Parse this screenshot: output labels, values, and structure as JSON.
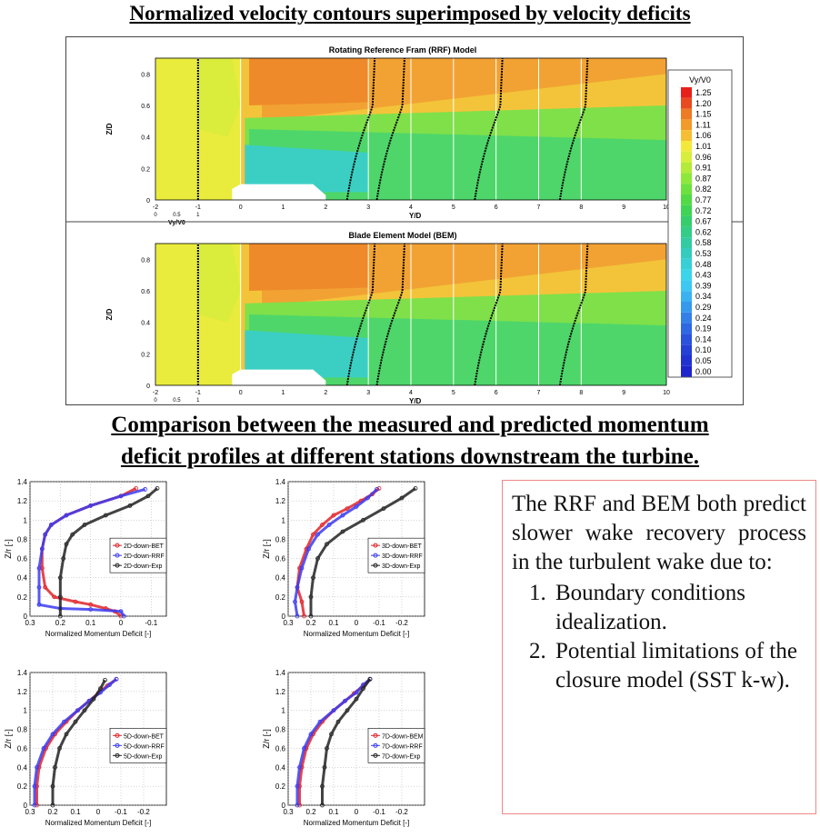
{
  "header": {
    "title": "Normalized velocity contours superimposed by velocity deficits",
    "subtitle_line1": "Comparison between the measured and predicted momentum",
    "subtitle_line2": "deficit profiles at different stations downstream the turbine."
  },
  "contour_figure": {
    "panels": [
      {
        "title": "Rotating Reference Fram (RRF) Model",
        "ylabel": "Z/D",
        "xlabel": "Y/D",
        "sub_xlabel": "Vy/V0"
      },
      {
        "title": "Blade Element Model (BEM)",
        "ylabel": "Z/D",
        "xlabel": "Y/D",
        "sub_xlabel": "Vy/V0"
      }
    ],
    "yticks": [
      "0",
      "0.2",
      "0.4",
      "0.6",
      "0.8"
    ],
    "xticks": [
      "-2",
      "-1",
      "0",
      "1",
      "2",
      "3",
      "4",
      "5",
      "6",
      "7",
      "8",
      "9",
      "10"
    ],
    "sub_ticks": [
      "0",
      "0.5",
      "1"
    ],
    "colorbar": {
      "title": "Vy/V0",
      "levels": [
        "1.25",
        "1.20",
        "1.15",
        "1.11",
        "1.06",
        "1.01",
        "0.96",
        "0.91",
        "0.87",
        "0.82",
        "0.77",
        "0.72",
        "0.67",
        "0.62",
        "0.58",
        "0.53",
        "0.48",
        "0.43",
        "0.39",
        "0.34",
        "0.29",
        "0.24",
        "0.19",
        "0.14",
        "0.10",
        "0.05",
        "0.00"
      ],
      "colors": [
        "#e8201a",
        "#ea4a1f",
        "#ee7a24",
        "#f29a2a",
        "#f6bf33",
        "#f3e93a",
        "#d8ee3c",
        "#b4ea3a",
        "#8ee83c",
        "#6de23e",
        "#51da46",
        "#3fd455",
        "#36ce6c",
        "#34cc86",
        "#33cba2",
        "#34ccbe",
        "#36d0d6",
        "#3bd5ea",
        "#3cc8f2",
        "#3ab2f2",
        "#3799ee",
        "#3480e8",
        "#2f68e2",
        "#2a52dc",
        "#2540d6",
        "#2232d2",
        "#1e24cc"
      ]
    }
  },
  "chart_data": [
    {
      "type": "scatter",
      "title": "",
      "xlabel": "Normalized Momentum Deficit [-]",
      "ylabel": "Z/r [-]",
      "xlim": [
        0.3,
        -0.15
      ],
      "ylim": [
        0,
        1.4
      ],
      "xticks": [
        "0.3",
        "0.2",
        "0.1",
        "0",
        "-0.1"
      ],
      "yticks": [
        "0",
        "0.2",
        "0.4",
        "0.6",
        "0.8",
        "1",
        "1.2",
        "1.4"
      ],
      "series": [
        {
          "name": "2D-down-BET",
          "color": "#e0242a",
          "x": [
            0.0,
            0.02,
            0.05,
            0.1,
            0.15,
            0.22,
            0.25,
            0.26,
            0.26,
            0.25,
            0.23,
            0.18,
            0.1,
            0.0,
            -0.05
          ],
          "y": [
            0.0,
            0.05,
            0.08,
            0.12,
            0.15,
            0.2,
            0.3,
            0.5,
            0.7,
            0.85,
            0.95,
            1.05,
            1.15,
            1.25,
            1.33
          ]
        },
        {
          "name": "2D-down-RRF",
          "color": "#3b3bf0",
          "x": [
            -0.01,
            0.0,
            0.1,
            0.2,
            0.27,
            0.27,
            0.27,
            0.26,
            0.25,
            0.23,
            0.18,
            0.1,
            0.0,
            -0.08
          ],
          "y": [
            0.0,
            0.05,
            0.07,
            0.08,
            0.12,
            0.3,
            0.5,
            0.7,
            0.85,
            0.95,
            1.05,
            1.15,
            1.25,
            1.32
          ]
        },
        {
          "name": "2D-down-Exp",
          "color": "#222222",
          "x": [
            0.2,
            0.2,
            0.2,
            0.19,
            0.18,
            0.16,
            0.12,
            0.05,
            -0.03,
            -0.09,
            -0.12
          ],
          "y": [
            0.0,
            0.2,
            0.4,
            0.6,
            0.75,
            0.85,
            0.95,
            1.05,
            1.15,
            1.25,
            1.33
          ]
        }
      ]
    },
    {
      "type": "scatter",
      "title": "",
      "xlabel": "Normalized Momentum Deficit [-]",
      "ylabel": "Z/r [-]",
      "xlim": [
        0.3,
        -0.3
      ],
      "ylim": [
        0,
        1.4
      ],
      "xticks": [
        "0.3",
        "0.2",
        "0.1",
        "0",
        "-0.1",
        "-0.2"
      ],
      "yticks": [
        "0",
        "0.2",
        "0.4",
        "0.6",
        "0.8",
        "1",
        "1.2",
        "1.4"
      ],
      "series": [
        {
          "name": "3D-down-BET",
          "color": "#e0242a",
          "x": [
            0.23,
            0.24,
            0.26,
            0.25,
            0.22,
            0.19,
            0.15,
            0.1,
            0.04,
            -0.02,
            -0.07,
            -0.1
          ],
          "y": [
            0.0,
            0.15,
            0.3,
            0.5,
            0.7,
            0.85,
            0.95,
            1.05,
            1.12,
            1.2,
            1.27,
            1.33
          ]
        },
        {
          "name": "3D-down-RRF",
          "color": "#3b3bf0",
          "x": [
            0.26,
            0.27,
            0.26,
            0.24,
            0.21,
            0.17,
            0.12,
            0.06,
            0.0,
            -0.05,
            -0.09
          ],
          "y": [
            0.0,
            0.15,
            0.3,
            0.5,
            0.7,
            0.85,
            0.95,
            1.05,
            1.14,
            1.23,
            1.32
          ]
        },
        {
          "name": "3D-down-Exp",
          "color": "#222222",
          "x": [
            0.2,
            0.2,
            0.19,
            0.17,
            0.13,
            0.06,
            -0.03,
            -0.12,
            -0.2,
            -0.26
          ],
          "y": [
            0.0,
            0.2,
            0.4,
            0.6,
            0.75,
            0.88,
            1.0,
            1.12,
            1.23,
            1.33
          ]
        }
      ]
    },
    {
      "type": "scatter",
      "title": "",
      "xlabel": "Normalized Momentum Deficit [-]",
      "ylabel": "Z/r [-]",
      "xlim": [
        0.3,
        -0.3
      ],
      "ylim": [
        0,
        1.4
      ],
      "xticks": [
        "0.3",
        "0.2",
        "0.1",
        "0",
        "-0.1",
        "-0.2"
      ],
      "yticks": [
        "0",
        "0.2",
        "0.4",
        "0.6",
        "0.8",
        "1",
        "1.2",
        "1.4"
      ],
      "series": [
        {
          "name": "5D-down-BET",
          "color": "#e0242a",
          "x": [
            0.27,
            0.27,
            0.26,
            0.23,
            0.19,
            0.14,
            0.09,
            0.04,
            0.0,
            -0.04,
            -0.08
          ],
          "y": [
            0.0,
            0.2,
            0.4,
            0.6,
            0.75,
            0.88,
            1.0,
            1.1,
            1.18,
            1.26,
            1.33
          ]
        },
        {
          "name": "5D-down-RRF",
          "color": "#3b3bf0",
          "x": [
            0.28,
            0.28,
            0.27,
            0.24,
            0.2,
            0.15,
            0.09,
            0.04,
            -0.01,
            -0.05,
            -0.08
          ],
          "y": [
            0.0,
            0.2,
            0.4,
            0.6,
            0.75,
            0.88,
            1.0,
            1.1,
            1.19,
            1.27,
            1.33
          ]
        },
        {
          "name": "5D-down-Exp",
          "color": "#222222",
          "x": [
            0.2,
            0.2,
            0.19,
            0.17,
            0.14,
            0.1,
            0.06,
            0.02,
            -0.01,
            -0.03
          ],
          "y": [
            0.0,
            0.2,
            0.4,
            0.6,
            0.75,
            0.88,
            1.0,
            1.12,
            1.23,
            1.32
          ]
        }
      ]
    },
    {
      "type": "scatter",
      "title": "",
      "xlabel": "Normalized Momentum Deficit [-]",
      "ylabel": "Z/r [-]",
      "xlim": [
        0.3,
        -0.3
      ],
      "ylim": [
        0,
        1.4
      ],
      "xticks": [
        "0.3",
        "0.2",
        "0.1",
        "0",
        "-0.1",
        "-0.2"
      ],
      "yticks": [
        "0",
        "0.2",
        "0.4",
        "0.6",
        "0.8",
        "1",
        "1.2",
        "1.4"
      ],
      "series": [
        {
          "name": "7D-down-BEM",
          "color": "#e0242a",
          "x": [
            0.25,
            0.25,
            0.24,
            0.22,
            0.19,
            0.15,
            0.1,
            0.05,
            0.01,
            -0.03,
            -0.06
          ],
          "y": [
            0.0,
            0.2,
            0.4,
            0.6,
            0.75,
            0.88,
            1.0,
            1.1,
            1.18,
            1.26,
            1.33
          ]
        },
        {
          "name": "7D-down-RRF",
          "color": "#3b3bf0",
          "x": [
            0.26,
            0.26,
            0.25,
            0.23,
            0.2,
            0.16,
            0.1,
            0.05,
            0.0,
            -0.03,
            -0.06
          ],
          "y": [
            0.0,
            0.2,
            0.4,
            0.6,
            0.75,
            0.88,
            1.0,
            1.1,
            1.19,
            1.27,
            1.33
          ]
        },
        {
          "name": "7D-down-Exp",
          "color": "#222222",
          "x": [
            0.15,
            0.15,
            0.14,
            0.13,
            0.11,
            0.08,
            0.04,
            0.0,
            -0.03,
            -0.06
          ],
          "y": [
            0.0,
            0.2,
            0.4,
            0.6,
            0.75,
            0.88,
            1.0,
            1.12,
            1.23,
            1.33
          ]
        }
      ]
    }
  ],
  "note": {
    "intro": "The RRF and BEM both predict slower wake recovery process in the turbulent wake due to:",
    "items": [
      "Boundary conditions idealization.",
      "Potential limitations of the closure model (SST k-w)."
    ]
  }
}
